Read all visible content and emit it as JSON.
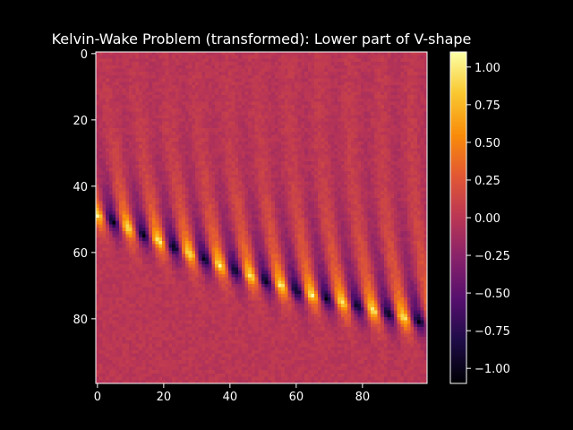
{
  "chart_data": {
    "type": "heatmap",
    "title": "Kelvin-Wake Problem (transformed): Lower part of V-shape",
    "xlabel": "",
    "ylabel": "",
    "xlim": [
      0,
      99
    ],
    "ylim": [
      99,
      0
    ],
    "x_ticks": [
      0,
      20,
      40,
      60,
      80
    ],
    "y_ticks": [
      0,
      20,
      40,
      60,
      80
    ],
    "grid_size": [
      100,
      100
    ],
    "colormap": "inferno",
    "colorbar": {
      "range": [
        -1.1,
        1.1
      ],
      "ticks": [
        1.0,
        0.75,
        0.5,
        0.25,
        0.0,
        -0.25,
        -0.5,
        -0.75,
        -1.0
      ],
      "tick_labels": [
        "1.00",
        "0.75",
        "0.50",
        "0.25",
        "0.00",
        "−0.25",
        "−0.50",
        "−0.75",
        "−1.00"
      ]
    },
    "description_of_field": {
      "background_value": 0.0,
      "wake_ridge_start": [
        0,
        49
      ],
      "wake_ridge_end": [
        99,
        82
      ],
      "peak_amplitude": 1.1
    }
  },
  "colors": {
    "background": "#000000",
    "axis": "#ffffff"
  }
}
